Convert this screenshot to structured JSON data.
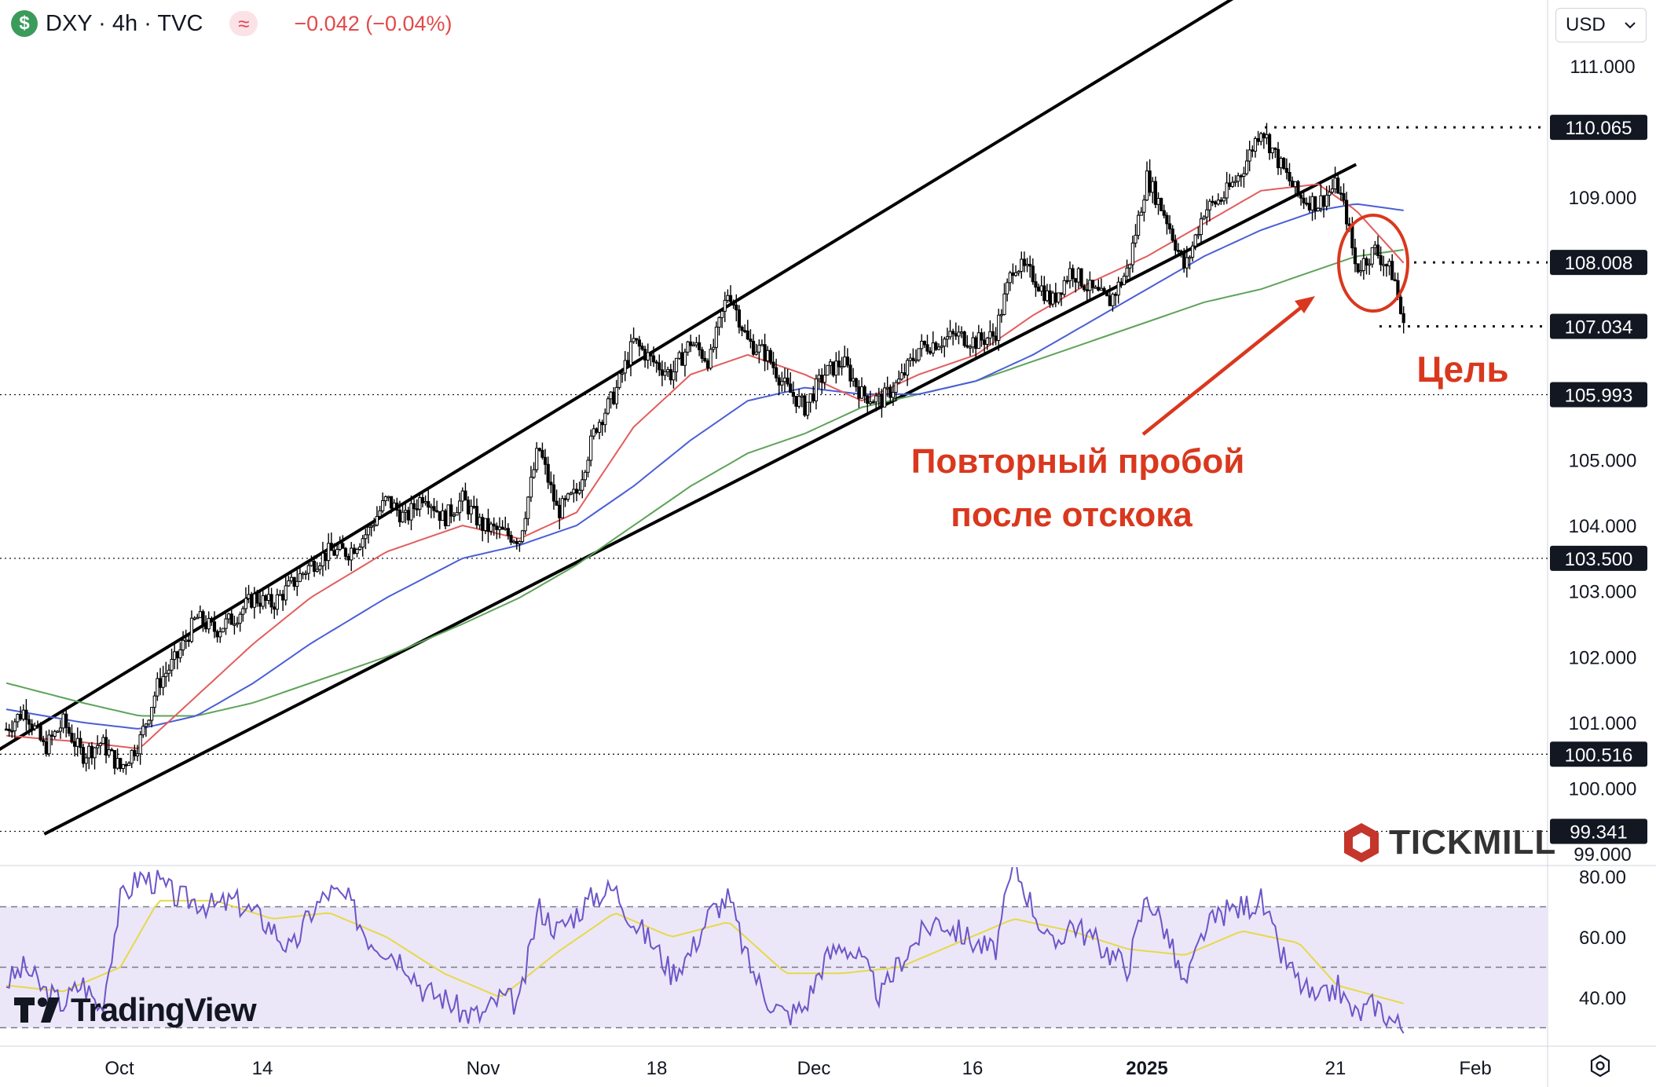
{
  "header": {
    "symbol": "DXY · 4h · TVC",
    "change": "−0.042 (−0.04%)"
  },
  "currency_selector": {
    "value": "USD"
  },
  "branding": {
    "tradingview": "TradingView",
    "tickmill": "TICKMILL"
  },
  "annotations": {
    "breakout_line1": "Повторный пробой",
    "breakout_line2": "после отскока",
    "target": "Цель"
  },
  "colors": {
    "ma_fast": "#e35d5d",
    "ma_mid": "#4a5fd6",
    "ma_slow": "#5fa35a",
    "rsi": "#6d55c8",
    "rsi_signal": "#e8d84a",
    "annotation": "#d9381e",
    "rsi_band": "#ebe7f8"
  },
  "chart_data": {
    "type": "candlestick",
    "x_ticks": [
      "Oct",
      "14",
      "Nov",
      "18",
      "Dec",
      "16",
      "2025",
      "21",
      "Feb"
    ],
    "y_ticks": [
      "111.000",
      "109.000",
      "105.000",
      "104.000",
      "103.000",
      "102.000",
      "101.000",
      "100.000",
      "99.000"
    ],
    "price_labels": [
      {
        "label": "110.065",
        "value": 110.065
      },
      {
        "label": "108.008",
        "value": 108.008
      },
      {
        "label": "107.034",
        "value": 107.034
      },
      {
        "label": "105.993",
        "value": 105.993
      },
      {
        "label": "103.500",
        "value": 103.5
      },
      {
        "label": "100.516",
        "value": 100.516
      },
      {
        "label": "99.341",
        "value": 99.341
      }
    ],
    "price_path": [
      [
        0,
        100.9
      ],
      [
        10,
        101.2
      ],
      [
        20,
        100.6
      ],
      [
        30,
        101.0
      ],
      [
        40,
        100.5
      ],
      [
        50,
        100.7
      ],
      [
        60,
        100.3
      ],
      [
        70,
        100.7
      ],
      [
        80,
        101.6
      ],
      [
        90,
        102.0
      ],
      [
        100,
        102.6
      ],
      [
        110,
        102.4
      ],
      [
        120,
        102.6
      ],
      [
        130,
        102.9
      ],
      [
        140,
        102.8
      ],
      [
        150,
        103.1
      ],
      [
        160,
        103.4
      ],
      [
        170,
        103.6
      ],
      [
        180,
        103.6
      ],
      [
        190,
        103.9
      ],
      [
        200,
        104.4
      ],
      [
        210,
        104.1
      ],
      [
        220,
        104.5
      ],
      [
        230,
        104.1
      ],
      [
        240,
        104.4
      ],
      [
        250,
        104.0
      ],
      [
        260,
        103.9
      ],
      [
        270,
        103.8
      ],
      [
        280,
        105.2
      ],
      [
        290,
        104.2
      ],
      [
        300,
        104.5
      ],
      [
        310,
        105.5
      ],
      [
        320,
        106.0
      ],
      [
        330,
        106.8
      ],
      [
        340,
        106.5
      ],
      [
        350,
        106.3
      ],
      [
        360,
        106.8
      ],
      [
        370,
        106.5
      ],
      [
        380,
        107.6
      ],
      [
        390,
        106.8
      ],
      [
        400,
        106.6
      ],
      [
        410,
        106.1
      ],
      [
        420,
        105.8
      ],
      [
        430,
        106.3
      ],
      [
        440,
        106.5
      ],
      [
        450,
        106.0
      ],
      [
        460,
        105.9
      ],
      [
        470,
        106.2
      ],
      [
        480,
        106.7
      ],
      [
        490,
        106.8
      ],
      [
        500,
        106.9
      ],
      [
        510,
        106.8
      ],
      [
        520,
        106.9
      ],
      [
        530,
        108.0
      ],
      [
        540,
        107.8
      ],
      [
        550,
        107.4
      ],
      [
        560,
        107.9
      ],
      [
        570,
        107.6
      ],
      [
        580,
        107.4
      ],
      [
        590,
        107.9
      ],
      [
        600,
        109.3
      ],
      [
        610,
        108.7
      ],
      [
        620,
        107.9
      ],
      [
        630,
        108.8
      ],
      [
        640,
        109.0
      ],
      [
        650,
        109.4
      ],
      [
        660,
        110.065
      ],
      [
        670,
        109.5
      ],
      [
        680,
        109.0
      ],
      [
        690,
        108.9
      ],
      [
        700,
        109.2
      ],
      [
        705,
        108.7
      ],
      [
        710,
        107.9
      ],
      [
        720,
        108.2
      ],
      [
        730,
        107.8
      ],
      [
        735,
        107.0
      ]
    ],
    "ma_fast": [
      [
        0,
        100.8
      ],
      [
        40,
        100.7
      ],
      [
        70,
        100.6
      ],
      [
        100,
        101.4
      ],
      [
        130,
        102.2
      ],
      [
        160,
        102.9
      ],
      [
        200,
        103.6
      ],
      [
        240,
        104.0
      ],
      [
        270,
        103.8
      ],
      [
        300,
        104.2
      ],
      [
        330,
        105.5
      ],
      [
        360,
        106.3
      ],
      [
        390,
        106.6
      ],
      [
        420,
        106.3
      ],
      [
        450,
        105.9
      ],
      [
        480,
        106.3
      ],
      [
        510,
        106.6
      ],
      [
        540,
        107.2
      ],
      [
        570,
        107.7
      ],
      [
        600,
        108.1
      ],
      [
        630,
        108.6
      ],
      [
        660,
        109.1
      ],
      [
        690,
        109.2
      ],
      [
        710,
        108.8
      ],
      [
        735,
        108.0
      ]
    ],
    "ma_mid": [
      [
        0,
        101.2
      ],
      [
        40,
        101.0
      ],
      [
        70,
        100.9
      ],
      [
        100,
        101.1
      ],
      [
        130,
        101.6
      ],
      [
        160,
        102.2
      ],
      [
        200,
        102.9
      ],
      [
        240,
        103.5
      ],
      [
        270,
        103.7
      ],
      [
        300,
        104.0
      ],
      [
        330,
        104.6
      ],
      [
        360,
        105.3
      ],
      [
        390,
        105.9
      ],
      [
        420,
        106.1
      ],
      [
        450,
        106.0
      ],
      [
        480,
        106.0
      ],
      [
        510,
        106.2
      ],
      [
        540,
        106.6
      ],
      [
        570,
        107.1
      ],
      [
        600,
        107.6
      ],
      [
        630,
        108.1
      ],
      [
        660,
        108.5
      ],
      [
        690,
        108.8
      ],
      [
        710,
        108.9
      ],
      [
        735,
        108.8
      ]
    ],
    "ma_slow": [
      [
        0,
        101.6
      ],
      [
        40,
        101.3
      ],
      [
        70,
        101.1
      ],
      [
        100,
        101.1
      ],
      [
        130,
        101.3
      ],
      [
        160,
        101.6
      ],
      [
        200,
        102.0
      ],
      [
        240,
        102.5
      ],
      [
        270,
        102.9
      ],
      [
        300,
        103.4
      ],
      [
        330,
        104.0
      ],
      [
        360,
        104.6
      ],
      [
        390,
        105.1
      ],
      [
        420,
        105.4
      ],
      [
        450,
        105.8
      ],
      [
        480,
        106.0
      ],
      [
        510,
        106.2
      ],
      [
        540,
        106.5
      ],
      [
        570,
        106.8
      ],
      [
        600,
        107.1
      ],
      [
        630,
        107.4
      ],
      [
        660,
        107.6
      ],
      [
        690,
        107.9
      ],
      [
        710,
        108.1
      ],
      [
        735,
        108.2
      ]
    ],
    "channel": {
      "upper": [
        [
          -20,
          100.3
        ],
        [
          655,
          112.2
        ]
      ],
      "lower": [
        [
          20,
          99.3
        ],
        [
          710,
          109.5
        ]
      ]
    },
    "rsi_ticks": [
      "80.00",
      "60.00",
      "40.00"
    ],
    "rsi_levels": [
      70,
      50,
      30
    ],
    "rsi_path": [
      [
        0,
        45
      ],
      [
        10,
        50
      ],
      [
        20,
        42
      ],
      [
        30,
        38
      ],
      [
        40,
        45
      ],
      [
        50,
        36
      ],
      [
        60,
        72
      ],
      [
        70,
        80
      ],
      [
        80,
        78
      ],
      [
        90,
        73
      ],
      [
        100,
        72
      ],
      [
        110,
        70
      ],
      [
        120,
        72
      ],
      [
        130,
        68
      ],
      [
        140,
        63
      ],
      [
        150,
        55
      ],
      [
        160,
        68
      ],
      [
        170,
        75
      ],
      [
        180,
        72
      ],
      [
        190,
        60
      ],
      [
        200,
        56
      ],
      [
        210,
        52
      ],
      [
        220,
        42
      ],
      [
        230,
        40
      ],
      [
        240,
        35
      ],
      [
        250,
        34
      ],
      [
        260,
        40
      ],
      [
        270,
        38
      ],
      [
        280,
        70
      ],
      [
        290,
        62
      ],
      [
        300,
        68
      ],
      [
        310,
        74
      ],
      [
        320,
        76
      ],
      [
        330,
        65
      ],
      [
        340,
        58
      ],
      [
        350,
        48
      ],
      [
        360,
        55
      ],
      [
        370,
        68
      ],
      [
        380,
        73
      ],
      [
        390,
        52
      ],
      [
        400,
        40
      ],
      [
        410,
        34
      ],
      [
        420,
        37
      ],
      [
        430,
        52
      ],
      [
        440,
        58
      ],
      [
        450,
        52
      ],
      [
        460,
        40
      ],
      [
        470,
        52
      ],
      [
        480,
        60
      ],
      [
        490,
        66
      ],
      [
        500,
        62
      ],
      [
        510,
        58
      ],
      [
        520,
        55
      ],
      [
        530,
        84
      ],
      [
        540,
        70
      ],
      [
        550,
        56
      ],
      [
        560,
        65
      ],
      [
        570,
        60
      ],
      [
        580,
        55
      ],
      [
        590,
        50
      ],
      [
        600,
        74
      ],
      [
        610,
        62
      ],
      [
        620,
        43
      ],
      [
        630,
        62
      ],
      [
        640,
        68
      ],
      [
        650,
        70
      ],
      [
        660,
        72
      ],
      [
        670,
        55
      ],
      [
        680,
        45
      ],
      [
        690,
        38
      ],
      [
        700,
        44
      ],
      [
        705,
        38
      ],
      [
        710,
        34
      ],
      [
        720,
        38
      ],
      [
        730,
        32
      ],
      [
        735,
        30
      ]
    ],
    "rsi_signal_path": [
      [
        0,
        44
      ],
      [
        30,
        42
      ],
      [
        60,
        50
      ],
      [
        80,
        72
      ],
      [
        110,
        72
      ],
      [
        140,
        66
      ],
      [
        170,
        68
      ],
      [
        200,
        60
      ],
      [
        230,
        48
      ],
      [
        260,
        40
      ],
      [
        290,
        55
      ],
      [
        320,
        68
      ],
      [
        350,
        60
      ],
      [
        380,
        65
      ],
      [
        410,
        48
      ],
      [
        440,
        48
      ],
      [
        470,
        50
      ],
      [
        500,
        58
      ],
      [
        530,
        66
      ],
      [
        560,
        62
      ],
      [
        590,
        56
      ],
      [
        620,
        54
      ],
      [
        650,
        62
      ],
      [
        680,
        58
      ],
      [
        700,
        44
      ],
      [
        735,
        38
      ]
    ],
    "grid": false,
    "legend": "none"
  }
}
